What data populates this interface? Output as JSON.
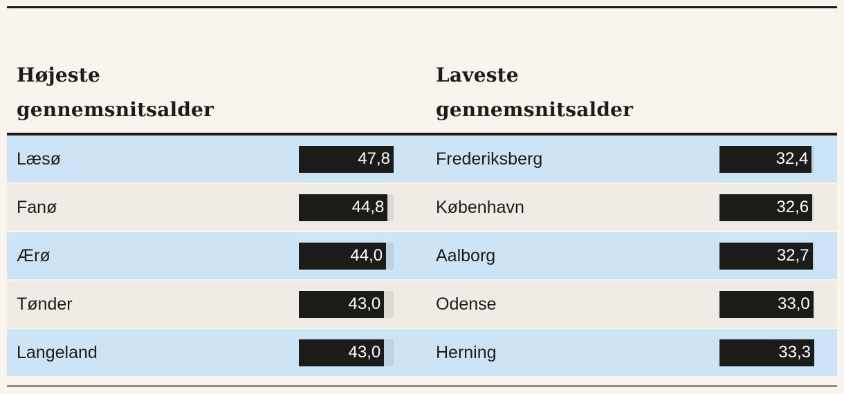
{
  "chart_data": [
    {
      "type": "bar",
      "orientation": "horizontal",
      "title": "Højeste gennemsnitsalder",
      "categories": [
        "Læsø",
        "Fanø",
        "Ærø",
        "Tønder",
        "Langeland"
      ],
      "values": [
        47.8,
        44.8,
        44.0,
        43.0,
        43.0
      ],
      "value_labels": [
        "47,8",
        "44,8",
        "44,0",
        "43,0",
        "43,0"
      ],
      "xlim": [
        0,
        47.8
      ],
      "grid": false,
      "legend": false
    },
    {
      "type": "bar",
      "orientation": "horizontal",
      "title": "Laveste gennemsnitsalder",
      "categories": [
        "Frederiksberg",
        "København",
        "Aalborg",
        "Odense",
        "Herning"
      ],
      "values": [
        32.4,
        32.6,
        32.7,
        33.0,
        33.3
      ],
      "value_labels": [
        "32,4",
        "32,6",
        "32,7",
        "33,0",
        "33,3"
      ],
      "xlim": [
        0,
        33.3
      ],
      "grid": false,
      "legend": false
    }
  ],
  "columns": [
    {
      "header_line1": "Højeste",
      "header_line2": "gennemsnitsalder",
      "max": 47.8,
      "rows": [
        {
          "label": "Læsø",
          "value": 47.8,
          "display": "47,8"
        },
        {
          "label": "Fanø",
          "value": 44.8,
          "display": "44,8"
        },
        {
          "label": "Ærø",
          "value": 44.0,
          "display": "44,0"
        },
        {
          "label": "Tønder",
          "value": 43.0,
          "display": "43,0"
        },
        {
          "label": "Langeland",
          "value": 43.0,
          "display": "43,0"
        }
      ]
    },
    {
      "header_line1": "Laveste",
      "header_line2": "gennemsnitsalder",
      "max": 33.3,
      "rows": [
        {
          "label": "Frederiksberg",
          "value": 32.4,
          "display": "32,4"
        },
        {
          "label": "København",
          "value": 32.6,
          "display": "32,6"
        },
        {
          "label": "Aalborg",
          "value": 32.7,
          "display": "32,7"
        },
        {
          "label": "Odense",
          "value": 33.0,
          "display": "33,0"
        },
        {
          "label": "Herning",
          "value": 33.3,
          "display": "33,3"
        }
      ]
    }
  ],
  "colors": {
    "page_bg": "#f9f5ee",
    "row_blue": "#cde4f7",
    "row_cream": "#f0ece5",
    "bar": "#1b1b19",
    "top_rule": "#1b1b19",
    "bottom_rule": "#8c8c8a",
    "text": "#1c1c1a",
    "value_text": "#ffffff"
  }
}
